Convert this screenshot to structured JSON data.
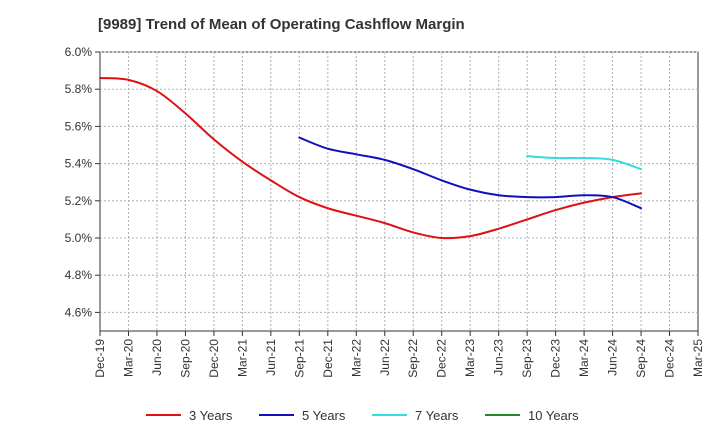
{
  "chart_data": {
    "type": "line",
    "title": "[9989]  Trend of Mean of Operating Cashflow Margin",
    "xlabel": "",
    "ylabel": "",
    "ylim": [
      4.5,
      6.0
    ],
    "yticks": [
      4.6,
      4.8,
      5.0,
      5.2,
      5.4,
      5.6,
      5.8,
      6.0
    ],
    "ytick_labels": [
      "4.6%",
      "4.8%",
      "5.0%",
      "5.2%",
      "5.4%",
      "5.6%",
      "5.8%",
      "6.0%"
    ],
    "categories": [
      "Dec-19",
      "Mar-20",
      "Jun-20",
      "Sep-20",
      "Dec-20",
      "Mar-21",
      "Jun-21",
      "Sep-21",
      "Dec-21",
      "Mar-22",
      "Jun-22",
      "Sep-22",
      "Dec-22",
      "Mar-23",
      "Jun-23",
      "Sep-23",
      "Dec-23",
      "Mar-24",
      "Jun-24",
      "Sep-24",
      "Dec-24",
      "Mar-25"
    ],
    "grid": true,
    "legend_position": "bottom",
    "series": [
      {
        "name": "3 Years",
        "color": "#dd1111",
        "values": [
          5.86,
          5.85,
          5.79,
          5.67,
          5.53,
          5.41,
          5.31,
          5.22,
          5.16,
          5.12,
          5.08,
          5.03,
          5.0,
          5.01,
          5.05,
          5.1,
          5.15,
          5.19,
          5.22,
          5.24,
          null,
          null
        ]
      },
      {
        "name": "5 Years",
        "color": "#1111bb",
        "values": [
          null,
          null,
          null,
          null,
          null,
          null,
          null,
          5.54,
          5.48,
          5.45,
          5.42,
          5.37,
          5.31,
          5.26,
          5.23,
          5.22,
          5.22,
          5.23,
          5.22,
          5.16,
          null,
          null
        ]
      },
      {
        "name": "7 Years",
        "color": "#33dddd",
        "values": [
          null,
          null,
          null,
          null,
          null,
          null,
          null,
          null,
          null,
          null,
          null,
          null,
          null,
          null,
          null,
          5.44,
          5.43,
          5.43,
          5.42,
          5.37,
          null,
          null
        ]
      },
      {
        "name": "10 Years",
        "color": "#228822",
        "values": [
          null,
          null,
          null,
          null,
          null,
          null,
          null,
          null,
          null,
          null,
          null,
          null,
          null,
          null,
          null,
          null,
          null,
          null,
          null,
          null,
          null,
          null
        ]
      }
    ]
  }
}
